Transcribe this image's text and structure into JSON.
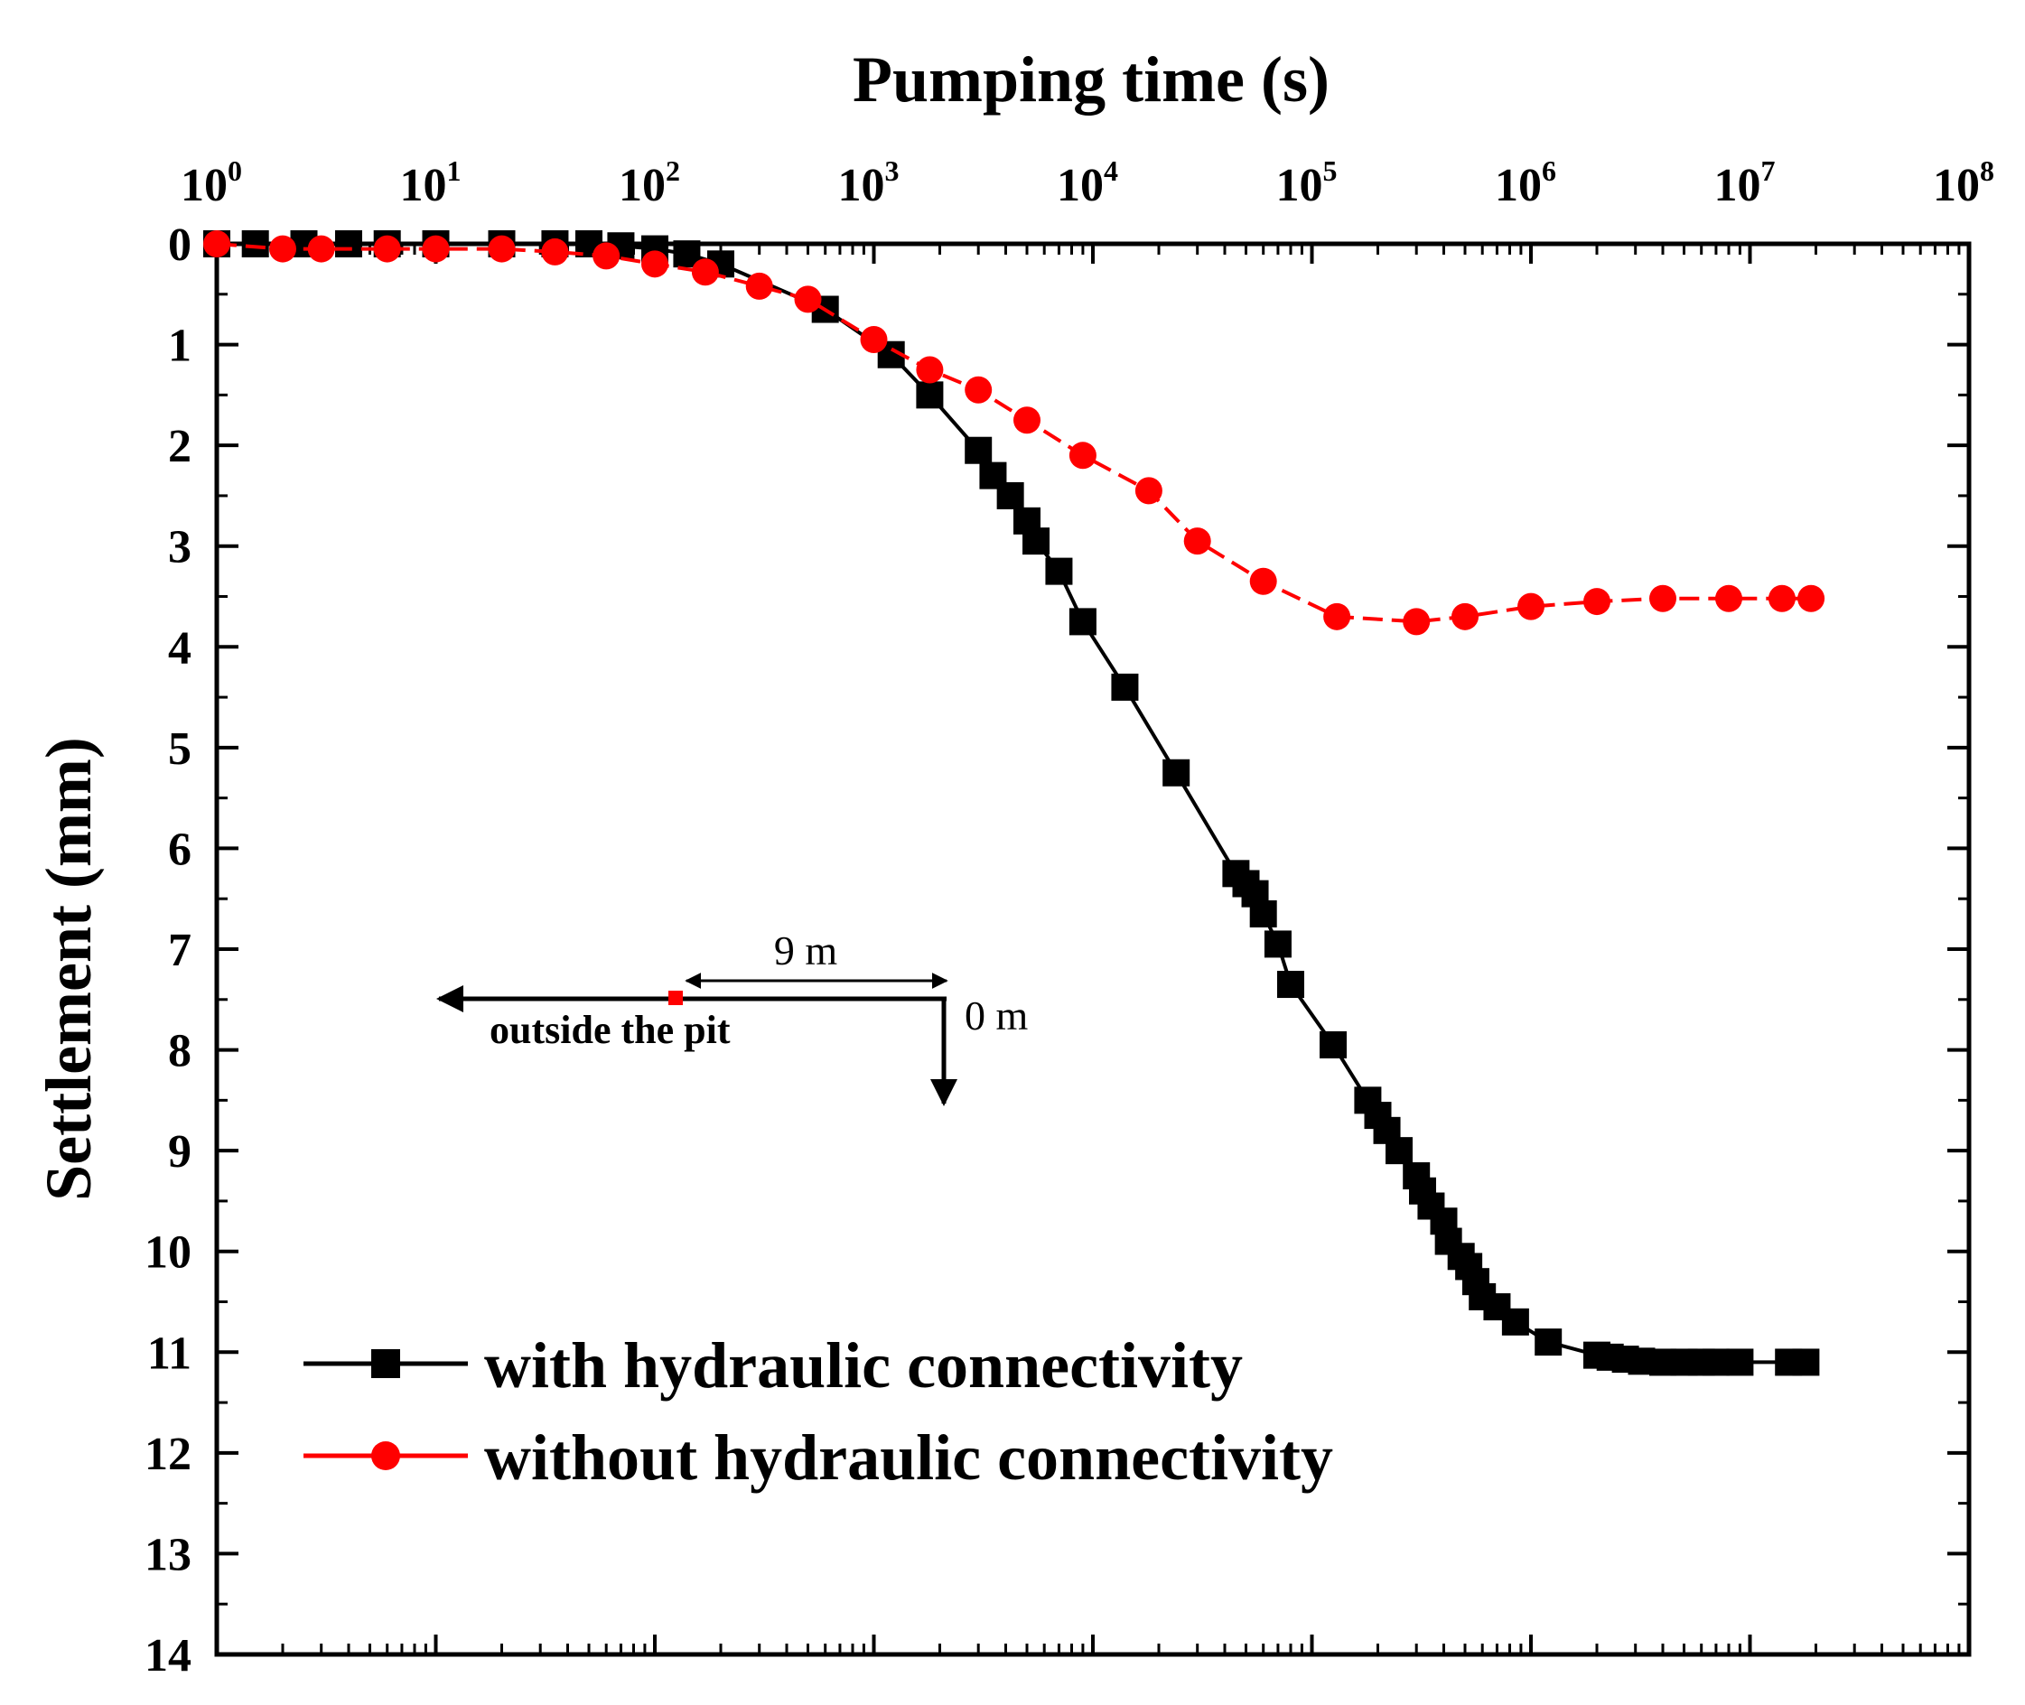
{
  "chart_data": {
    "type": "line",
    "xlabel": "Pumping time (s)",
    "ylabel": "Settlement (mm)",
    "xscale": "log",
    "xlim": [
      1,
      100000000
    ],
    "ylim": [
      0,
      14
    ],
    "y_inverted": true,
    "x_axis_position": "top",
    "x_tick_labels": [
      {
        "base": "10",
        "exp": "0"
      },
      {
        "base": "10",
        "exp": "1"
      },
      {
        "base": "10",
        "exp": "2"
      },
      {
        "base": "10",
        "exp": "3"
      },
      {
        "base": "10",
        "exp": "4"
      },
      {
        "base": "10",
        "exp": "5"
      },
      {
        "base": "10",
        "exp": "6"
      },
      {
        "base": "10",
        "exp": "7"
      },
      {
        "base": "10",
        "exp": "8"
      }
    ],
    "y_tick_labels": [
      "0",
      "1",
      "2",
      "3",
      "4",
      "5",
      "6",
      "7",
      "8",
      "9",
      "10",
      "11",
      "12",
      "13",
      "14"
    ],
    "legend_placement": "bottom-left",
    "series": [
      {
        "name": "with hydraulic connectivity",
        "color": "#000000",
        "marker": "square",
        "line_style": "solid",
        "x": [
          1,
          1.5,
          2.5,
          4,
          6,
          10,
          20,
          35,
          50,
          70,
          100,
          140,
          200,
          600,
          1200,
          1800,
          3000,
          3500,
          4200,
          5000,
          5500,
          7000,
          9000,
          14000,
          24000,
          45000,
          50000,
          55000,
          60000,
          70000,
          80000,
          125000,
          180000,
          200000,
          220000,
          250000,
          300000,
          320000,
          350000,
          400000,
          420000,
          480000,
          520000,
          560000,
          600000,
          700000,
          850000,
          1200000,
          2000000,
          2300000,
          2700000,
          3200000,
          4000000,
          5000000,
          6000000,
          7000000,
          9000000,
          15000000,
          18000000
        ],
        "y": [
          0,
          0,
          0,
          0,
          0,
          0,
          0,
          0,
          0,
          0.02,
          0.05,
          0.1,
          0.2,
          0.65,
          1.1,
          1.5,
          2.05,
          2.3,
          2.5,
          2.75,
          2.95,
          3.25,
          3.75,
          4.4,
          5.25,
          6.25,
          6.35,
          6.45,
          6.65,
          6.95,
          7.35,
          7.95,
          8.5,
          8.65,
          8.8,
          9.0,
          9.25,
          9.4,
          9.55,
          9.7,
          9.9,
          10.05,
          10.15,
          10.3,
          10.45,
          10.55,
          10.7,
          10.9,
          11.03,
          11.05,
          11.07,
          11.09,
          11.1,
          11.1,
          11.1,
          11.1,
          11.1,
          11.1,
          11.1
        ]
      },
      {
        "name": "without hydraulic connectivity",
        "color": "#ff0000",
        "marker": "circle",
        "line_style": "dashed",
        "x": [
          1,
          2,
          3,
          6,
          10,
          20,
          35,
          60,
          100,
          170,
          300,
          500,
          1000,
          1800,
          3000,
          5000,
          9000,
          18000,
          30000,
          60000,
          130000,
          300000,
          500000,
          1000000,
          2000000,
          4000000,
          8000000,
          14000000,
          19000000
        ],
        "y": [
          0,
          0.05,
          0.05,
          0.05,
          0.05,
          0.05,
          0.08,
          0.12,
          0.2,
          0.28,
          0.42,
          0.55,
          0.95,
          1.25,
          1.45,
          1.75,
          2.1,
          2.45,
          2.95,
          3.35,
          3.7,
          3.75,
          3.7,
          3.6,
          3.55,
          3.52,
          3.52,
          3.52,
          3.52
        ]
      }
    ],
    "inset": {
      "distance_label": "9 m",
      "origin_label": "0 m",
      "direction_label": "outside the pit",
      "marker_color": "#ff0000"
    }
  }
}
